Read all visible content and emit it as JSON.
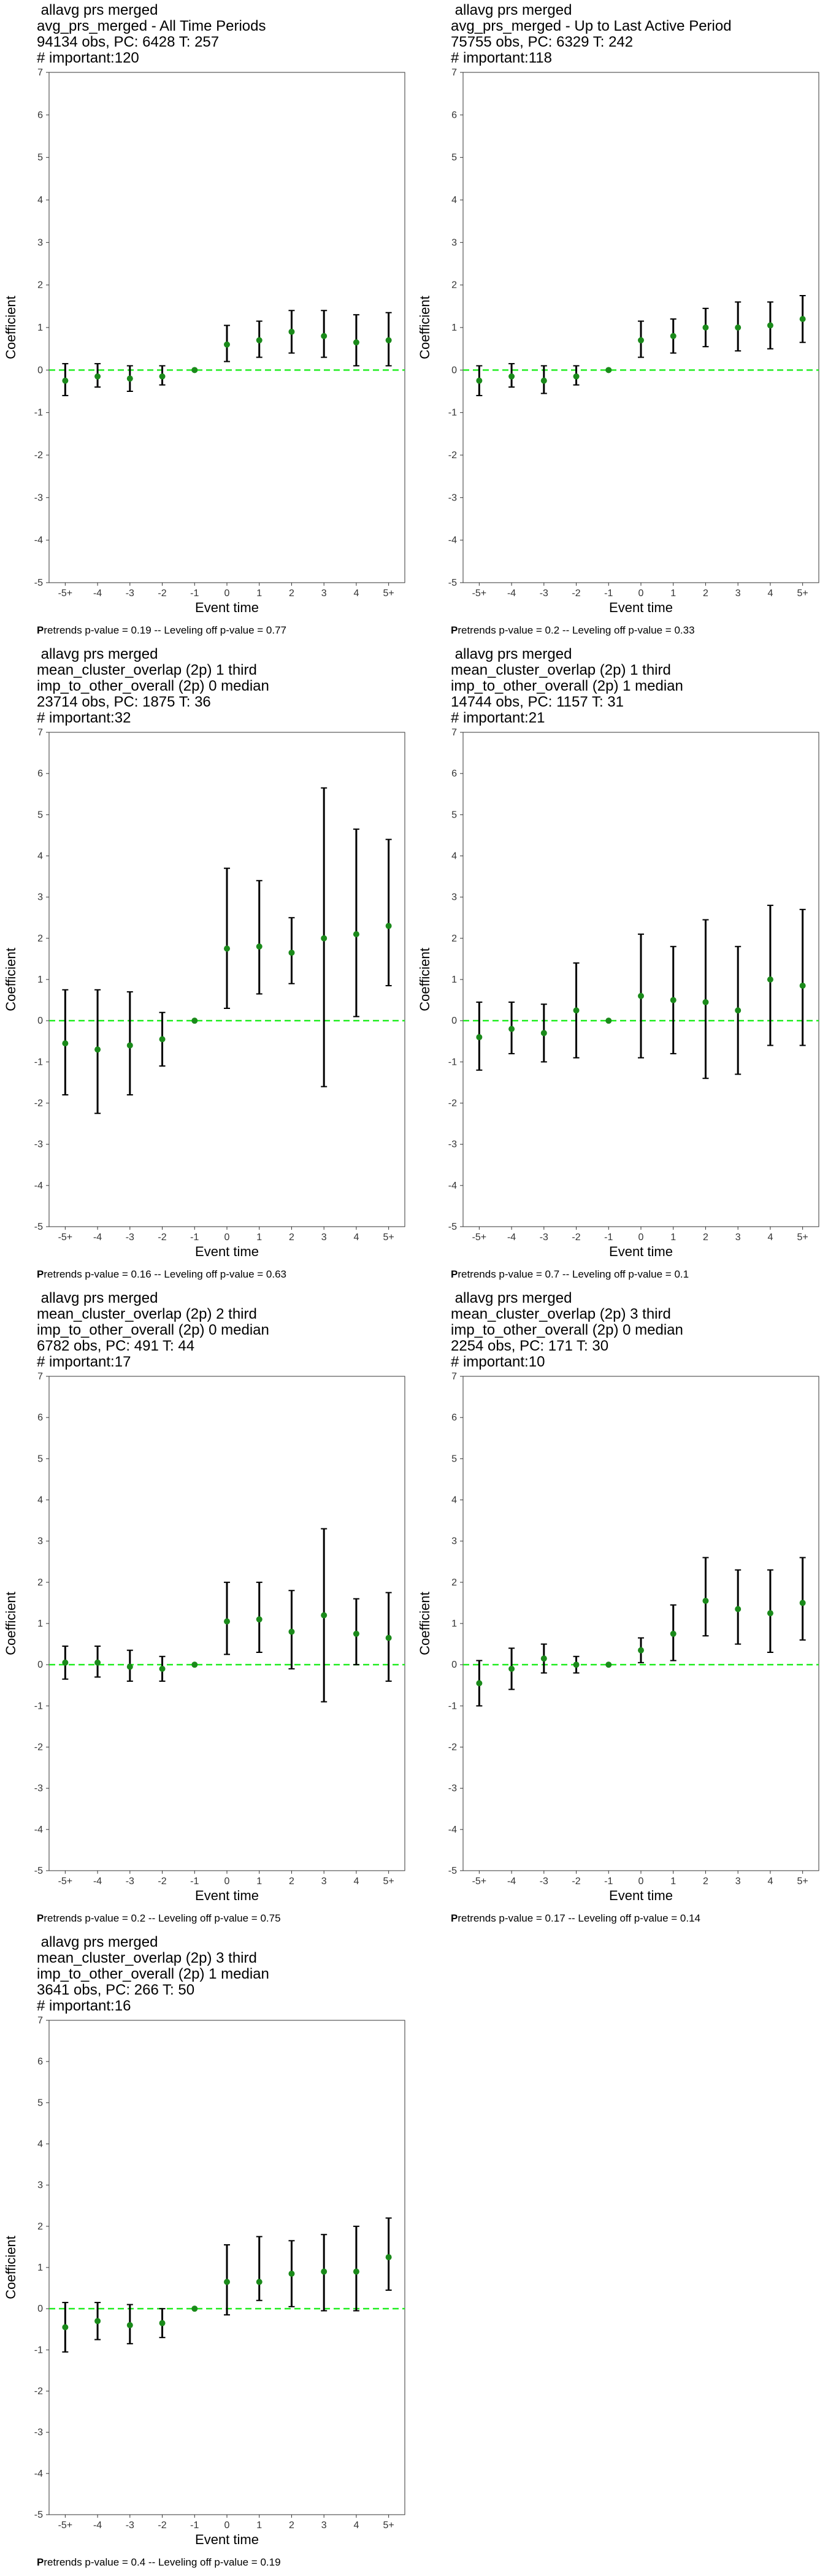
{
  "style": {
    "zero_line_color": "#22ee22",
    "point_color": "#1a8a1a",
    "bar_color": "#000000",
    "frame_color": "#333333"
  },
  "common": {
    "xlabel": "Event time",
    "ylabel": "Coefficient",
    "categories": [
      "-5+",
      "-4",
      "-3",
      "-2",
      "-1",
      "0",
      "1",
      "2",
      "3",
      "4",
      "5+"
    ],
    "yticks": [
      -5,
      -4,
      -3,
      -2,
      -1,
      0,
      1,
      2,
      3,
      4,
      5,
      6,
      7
    ]
  },
  "chart_data": [
    {
      "type": "scatter",
      "title_lines": [
        " allavg prs merged",
        "avg_prs_merged - All Time Periods",
        "94134 obs, PC: 6428 T: 257",
        "# important:120"
      ],
      "footnote_p": "P",
      "footnote": "retrends p-value = 0.19 -- Leveling off p-value = 0.77",
      "xlabel": "Event time",
      "ylabel": "Coefficient",
      "ylim": [
        -5,
        7
      ],
      "categories": [
        "-5+",
        "-4",
        "-3",
        "-2",
        "-1",
        "0",
        "1",
        "2",
        "3",
        "4",
        "5+"
      ],
      "coef": [
        -0.25,
        -0.15,
        -0.2,
        -0.15,
        0,
        0.6,
        0.7,
        0.9,
        0.8,
        0.65,
        0.7
      ],
      "lower": [
        -0.6,
        -0.4,
        -0.5,
        -0.35,
        0,
        0.2,
        0.3,
        0.4,
        0.3,
        0.1,
        0.1
      ],
      "upper": [
        0.15,
        0.15,
        0.1,
        0.1,
        0,
        1.05,
        1.15,
        1.4,
        1.4,
        1.3,
        1.35
      ]
    },
    {
      "type": "scatter",
      "title_lines": [
        " allavg prs merged",
        "avg_prs_merged - Up to Last Active Period",
        "75755 obs, PC: 6329 T: 242",
        "# important:118"
      ],
      "footnote_p": "P",
      "footnote": "retrends p-value = 0.2 -- Leveling off p-value = 0.33",
      "xlabel": "Event time",
      "ylabel": "Coefficient",
      "ylim": [
        -5,
        7
      ],
      "categories": [
        "-5+",
        "-4",
        "-3",
        "-2",
        "-1",
        "0",
        "1",
        "2",
        "3",
        "4",
        "5+"
      ],
      "coef": [
        -0.25,
        -0.15,
        -0.25,
        -0.15,
        0,
        0.7,
        0.8,
        1.0,
        1.0,
        1.05,
        1.2
      ],
      "lower": [
        -0.6,
        -0.4,
        -0.55,
        -0.35,
        0,
        0.3,
        0.4,
        0.55,
        0.45,
        0.5,
        0.65
      ],
      "upper": [
        0.1,
        0.15,
        0.1,
        0.1,
        0,
        1.15,
        1.2,
        1.45,
        1.6,
        1.6,
        1.75
      ]
    },
    {
      "type": "scatter",
      "title_lines": [
        " allavg prs merged",
        "mean_cluster_overlap (2p) 1 third",
        "imp_to_other_overall (2p) 0 median",
        "23714 obs, PC: 1875 T: 36",
        "# important:32"
      ],
      "footnote_p": "P",
      "footnote": "retrends p-value = 0.16 -- Leveling off p-value = 0.63",
      "xlabel": "Event time",
      "ylabel": "Coefficient",
      "ylim": [
        -5,
        7
      ],
      "categories": [
        "-5+",
        "-4",
        "-3",
        "-2",
        "-1",
        "0",
        "1",
        "2",
        "3",
        "4",
        "5+"
      ],
      "coef": [
        -0.55,
        -0.7,
        -0.6,
        -0.45,
        0,
        1.75,
        1.8,
        1.65,
        2.0,
        2.1,
        2.3
      ],
      "lower": [
        -1.8,
        -2.25,
        -1.8,
        -1.1,
        0,
        0.3,
        0.65,
        0.9,
        -1.6,
        0.1,
        0.85
      ],
      "upper": [
        0.75,
        0.75,
        0.7,
        0.2,
        0,
        3.7,
        3.4,
        2.5,
        5.65,
        4.65,
        4.4
      ]
    },
    {
      "type": "scatter",
      "title_lines": [
        " allavg prs merged",
        "mean_cluster_overlap (2p) 1 third",
        "imp_to_other_overall (2p) 1 median",
        "14744 obs, PC: 1157 T: 31",
        "# important:21"
      ],
      "footnote_p": "P",
      "footnote": "retrends p-value = 0.7 -- Leveling off p-value = 0.1",
      "xlabel": "Event time",
      "ylabel": "Coefficient",
      "ylim": [
        -5,
        7
      ],
      "categories": [
        "-5+",
        "-4",
        "-3",
        "-2",
        "-1",
        "0",
        "1",
        "2",
        "3",
        "4",
        "5+"
      ],
      "coef": [
        -0.4,
        -0.2,
        -0.3,
        0.25,
        0,
        0.6,
        0.5,
        0.45,
        0.25,
        1.0,
        0.85
      ],
      "lower": [
        -1.2,
        -0.8,
        -1.0,
        -0.9,
        0,
        -0.9,
        -0.8,
        -1.4,
        -1.3,
        -0.6,
        -0.6
      ],
      "upper": [
        0.45,
        0.45,
        0.4,
        1.4,
        0,
        2.1,
        1.8,
        2.45,
        1.8,
        2.8,
        2.7
      ]
    },
    {
      "type": "scatter",
      "title_lines": [
        " allavg prs merged",
        "mean_cluster_overlap (2p) 2 third",
        "imp_to_other_overall (2p) 0 median",
        "6782 obs, PC: 491 T: 44",
        "# important:17"
      ],
      "footnote_p": "P",
      "footnote": "retrends p-value = 0.2 -- Leveling off p-value = 0.75",
      "xlabel": "Event time",
      "ylabel": "Coefficient",
      "ylim": [
        -5,
        7
      ],
      "categories": [
        "-5+",
        "-4",
        "-3",
        "-2",
        "-1",
        "0",
        "1",
        "2",
        "3",
        "4",
        "5+"
      ],
      "coef": [
        0.05,
        0.05,
        -0.05,
        -0.1,
        0,
        1.05,
        1.1,
        0.8,
        1.2,
        0.75,
        0.65
      ],
      "lower": [
        -0.35,
        -0.3,
        -0.4,
        -0.4,
        0,
        0.25,
        0.3,
        -0.1,
        -0.9,
        0.0,
        -0.4
      ],
      "upper": [
        0.45,
        0.45,
        0.35,
        0.2,
        0,
        2.0,
        2.0,
        1.8,
        3.3,
        1.6,
        1.75
      ]
    },
    {
      "type": "scatter",
      "title_lines": [
        " allavg prs merged",
        "mean_cluster_overlap (2p) 3 third",
        "imp_to_other_overall (2p) 0 median",
        "2254 obs, PC: 171 T: 30",
        "# important:10"
      ],
      "footnote_p": "P",
      "footnote": "retrends p-value = 0.17 -- Leveling off p-value = 0.14",
      "xlabel": "Event time",
      "ylabel": "Coefficient",
      "ylim": [
        -5,
        7
      ],
      "categories": [
        "-5+",
        "-4",
        "-3",
        "-2",
        "-1",
        "0",
        "1",
        "2",
        "3",
        "4",
        "5+"
      ],
      "coef": [
        -0.45,
        -0.1,
        0.15,
        0.0,
        0,
        0.35,
        0.75,
        1.55,
        1.35,
        1.25,
        1.5
      ],
      "lower": [
        -1.0,
        -0.6,
        -0.2,
        -0.2,
        0,
        0.05,
        0.1,
        0.7,
        0.5,
        0.3,
        0.6
      ],
      "upper": [
        0.1,
        0.4,
        0.5,
        0.2,
        0,
        0.65,
        1.45,
        2.6,
        2.3,
        2.3,
        2.6
      ]
    },
    {
      "type": "scatter",
      "title_lines": [
        " allavg prs merged",
        "mean_cluster_overlap (2p) 3 third",
        "imp_to_other_overall (2p) 1 median",
        "3641 obs, PC: 266 T: 50",
        "# important:16"
      ],
      "footnote_p": "P",
      "footnote": "retrends p-value = 0.4 -- Leveling off p-value = 0.19",
      "xlabel": "Event time",
      "ylabel": "Coefficient",
      "ylim": [
        -5,
        7
      ],
      "categories": [
        "-5+",
        "-4",
        "-3",
        "-2",
        "-1",
        "0",
        "1",
        "2",
        "3",
        "4",
        "5+"
      ],
      "coef": [
        -0.45,
        -0.3,
        -0.4,
        -0.35,
        0,
        0.65,
        0.65,
        0.85,
        0.9,
        0.9,
        1.25
      ],
      "lower": [
        -1.05,
        -0.75,
        -0.85,
        -0.7,
        0,
        -0.15,
        0.2,
        0.05,
        -0.05,
        -0.05,
        0.45
      ],
      "upper": [
        0.15,
        0.15,
        0.1,
        0.0,
        0,
        1.55,
        1.75,
        1.65,
        1.8,
        2.0,
        2.2
      ]
    }
  ]
}
